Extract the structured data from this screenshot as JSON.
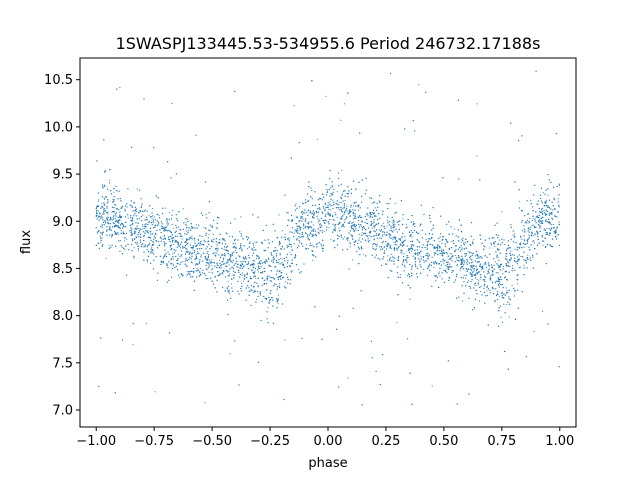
{
  "chart_data": {
    "type": "scatter",
    "title": "1SWASPJ133445.53-534955.6 Period 246732.17188s",
    "xlabel": "phase",
    "ylabel": "flux",
    "xlim": [
      -1.07,
      1.07
    ],
    "ylim": [
      6.82,
      10.73
    ],
    "xticks": [
      {
        "value": -1.0,
        "label": "−1.00"
      },
      {
        "value": -0.75,
        "label": "−0.75"
      },
      {
        "value": -0.5,
        "label": "−0.50"
      },
      {
        "value": -0.25,
        "label": "−0.25"
      },
      {
        "value": 0.0,
        "label": "0.00"
      },
      {
        "value": 0.25,
        "label": "0.25"
      },
      {
        "value": 0.5,
        "label": "0.50"
      },
      {
        "value": 0.75,
        "label": "0.75"
      },
      {
        "value": 1.0,
        "label": "1.00"
      }
    ],
    "yticks": [
      {
        "value": 7.0,
        "label": "7.0"
      },
      {
        "value": 7.5,
        "label": "7.5"
      },
      {
        "value": 8.0,
        "label": "8.0"
      },
      {
        "value": 8.5,
        "label": "8.5"
      },
      {
        "value": 9.0,
        "label": "9.0"
      },
      {
        "value": 9.5,
        "label": "9.5"
      },
      {
        "value": 10.0,
        "label": "10.0"
      },
      {
        "value": 10.5,
        "label": "10.5"
      }
    ],
    "grid": false,
    "marker_color": "#1f77b4",
    "series": [
      {
        "x": [
          -1.0,
          -0.95,
          -0.9,
          -0.85,
          -0.8,
          -0.75,
          -0.7,
          -0.65,
          -0.6,
          -0.55,
          -0.5,
          -0.45,
          -0.4,
          -0.35,
          -0.3,
          -0.25,
          -0.22,
          -0.2,
          -0.15,
          -0.1,
          -0.05,
          0.0,
          0.05,
          0.1,
          0.15,
          0.2,
          0.25,
          0.3,
          0.35,
          0.4,
          0.45,
          0.5,
          0.55,
          0.6,
          0.65,
          0.7,
          0.75,
          0.78,
          0.8,
          0.85,
          0.9,
          0.95,
          1.0
        ],
        "y": [
          9.0,
          9.05,
          9.02,
          8.97,
          8.9,
          8.85,
          8.8,
          8.75,
          8.7,
          8.67,
          8.64,
          8.6,
          8.56,
          8.52,
          8.48,
          8.45,
          8.47,
          8.55,
          8.8,
          8.97,
          9.03,
          9.05,
          9.05,
          9.02,
          8.97,
          8.9,
          8.85,
          8.8,
          8.75,
          8.7,
          8.67,
          8.64,
          8.6,
          8.56,
          8.52,
          8.48,
          8.45,
          8.47,
          8.55,
          8.8,
          8.97,
          9.03,
          9.05
        ]
      }
    ]
  }
}
